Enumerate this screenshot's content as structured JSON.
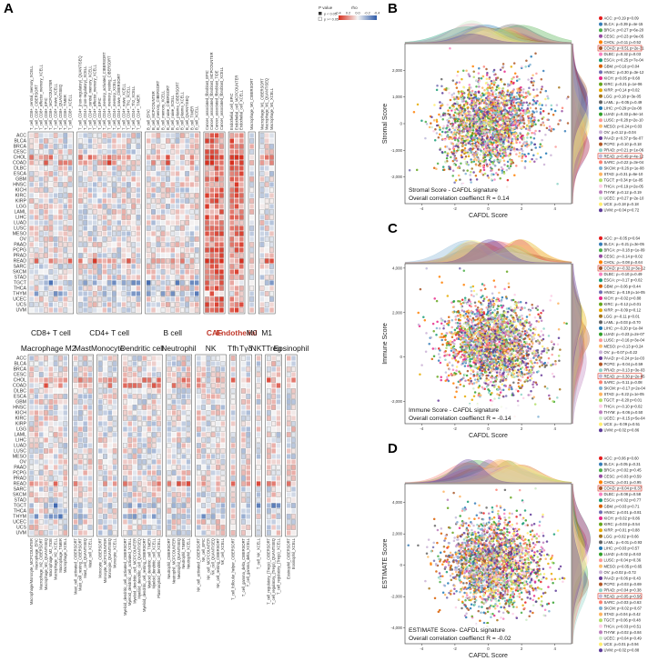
{
  "figure": {
    "panel_letters": [
      "A",
      "B",
      "C",
      "D"
    ]
  },
  "chart_data": [
    {
      "panel": "A",
      "type": "heatmap",
      "rows": [
        "ACC",
        "BLCA",
        "BRCA",
        "CESC",
        "CHOL",
        "COAD",
        "DLBC",
        "ESCA",
        "GBM",
        "HNSC",
        "KICH",
        "KIRC",
        "KIRP",
        "LGG",
        "LAML",
        "LIHC",
        "LUAD",
        "LUSC",
        "MESO",
        "OV",
        "PAAD",
        "PCPG",
        "PRAD",
        "READ",
        "SARC",
        "SKCM",
        "STAD",
        "TGCT",
        "THCA",
        "THYM",
        "UCEC",
        "UCS",
        "UVM"
      ],
      "legend": {
        "pvalue_title": "P value",
        "pvalue_levels": [
          "p < 0.05",
          "p >= 0.05"
        ],
        "rho_title": "rho",
        "rho_ticks": [
          "-0.4",
          "-0.2",
          "0.0",
          "0.2",
          "0.4"
        ],
        "colors": [
          "#2d5aa8",
          "#f4f4f4",
          "#d7301f"
        ]
      },
      "top_groups": [
        {
          "label": "CD8+ T cell",
          "highlight": false,
          "columns": [
            "T_cell_CD8+_central_memory_XCELL",
            "T_cell_CD8+_CIBERSORT",
            "T_cell_CD8+_effector_memory_XCELL",
            "T_cell_CD8+_EPIC",
            "T_cell_CD8+_MCPCOUNTER",
            "T_cell_CD8+_naive_XCELL",
            "T_cell_CD8+_QUANTISEQ",
            "T_cell_CD8+_TIMER",
            "T_cell_CD8+_XCELL"
          ]
        },
        {
          "label": "CD4+ T cell",
          "highlight": false,
          "columns": [
            "T_cell_CD4+_(non-regulatory)_QUANTISEQ",
            "T_cell_CD4+_(non-regulatory)_XCELL",
            "T_cell_CD4+_central_memory_XCELL",
            "T_cell_CD4+_effector_memory_XCELL",
            "T_cell_CD4+_EPIC",
            "T_cell_CD4+_memory_activated_CIBERSORT",
            "T_cell_CD4+_memory_resting_CIBERSORT",
            "T_cell_CD4+_memory_XCELL",
            "T_cell_CD4+_naive_CIBERSORT",
            "T_cell_CD4+_naive_XCELL",
            "T_cell_CD4+_Th1_XCELL",
            "T_cell_CD4+_Th2_XCELL",
            "T_cell_CD4+_TIMER"
          ]
        },
        {
          "label": "B cell",
          "highlight": false,
          "columns": [
            "B_cell_EPIC",
            "B_cell_MCPCOUNTER",
            "B_cell_memory_CIBERSORT",
            "B_cell_memory_XCELL",
            "B_cell_naive_CIBERSORT",
            "B_cell_naive_XCELL",
            "B_cell_plasma_CIBERSORT",
            "B_cell_plasma_XCELL",
            "B_cell_QUANTISEQ",
            "B_cell_TIMER",
            "B_cell_XCELL"
          ]
        },
        {
          "label": "CAF",
          "highlight": true,
          "columns": [
            "Cancer_associated_fibroblast_EPIC",
            "Cancer_associated_fibroblast_MCPCOUNTER",
            "Cancer_associated_fibroblast_TIDE",
            "Cancer_associated_fibroblast_XCELL"
          ]
        },
        {
          "label": "Endothelial",
          "highlight": true,
          "columns": [
            "Endothelial_cell_EPIC",
            "Endothelial_cell_MCPCOUNTER",
            "Endothelial_cell_XCELL"
          ]
        },
        {
          "label": "M0",
          "highlight": false,
          "columns": [
            "Macrophage_M0_CIBERSORT"
          ]
        },
        {
          "label": "M1",
          "highlight": false,
          "columns": [
            "Macrophage_M1_CIBERSORT",
            "Macrophage_M1_QUANTISEQ",
            "Macrophage_M1_XCELL"
          ]
        }
      ],
      "bottom_groups": [
        {
          "label": "Macrophage M2",
          "columns": [
            "Macrophage/Monocyte_MCPCOUNTER",
            "Macrophage_EPIC",
            "Macrophage_M2_CIBERSORT",
            "Macrophage_M2_QUANTISEQ",
            "Macrophage_M2_TIDE",
            "Macrophage_M2_XCELL",
            "Macrophage_TIMER",
            "Macrophage_XCELL"
          ]
        },
        {
          "label": "Mast",
          "columns": [
            "Mast_cell_activated_CIBERSORT",
            "Mast_cell_resting_CIBERSORT",
            "Mast_cell_QUANTISEQ",
            "Mast_cell_XCELL"
          ]
        },
        {
          "label": "Monocyte",
          "columns": [
            "Monocyte_CIBERSORT",
            "Monocyte_MCPCOUNTER",
            "Monocyte_QUANTISEQ",
            "Monocyte_XCELL"
          ]
        },
        {
          "label": "Dendritic cell",
          "columns": [
            "Myeloid_dendritic_cell_activated_CIBERSORT",
            "Myeloid_dendritic_cell_activated_XCELL",
            "Myeloid_dendritic_cell_MCPCOUNTER",
            "Myeloid_dendritic_cell_QUANTISEQ",
            "Myeloid_dendritic_cell_resting_CIBERSORT",
            "Myeloid_dendritic_cell_TIMER",
            "Myeloid_dendritic_cell_XCELL",
            "Plasmacytoid_dendritic_cell_XCELL"
          ]
        },
        {
          "label": "Neutrophil",
          "columns": [
            "Neutrophil_CIBERSORT",
            "Neutrophil_MCPCOUNTER",
            "Neutrophil_QUANTISEQ",
            "Neutrophil_TIMER",
            "Neutrophil_XCELL"
          ]
        },
        {
          "label": "NK",
          "columns": [
            "NK_cell_activated_CIBERSORT",
            "NK_cell_EPIC",
            "NK_cell_MCPCOUNTER",
            "NK_cell_QUANTISEQ",
            "NK_cell_resting_CIBERSORT",
            "NK_cell_XCELL"
          ]
        },
        {
          "label": "Tfh",
          "columns": [
            "T_cell_follicular_helper_CIBERSORT"
          ]
        },
        {
          "label": "Tγδ",
          "columns": [
            "T_cell_gamma_delta_CIBERSORT",
            "T_cell_gamma_delta_XCELL"
          ]
        },
        {
          "label": "NKT",
          "columns": [
            "T_cell_NK_XCELL"
          ]
        },
        {
          "label": "Treg",
          "columns": [
            "T_cell_regulatory_(Tregs)_CIBERSORT",
            "T_cell_regulatory_(Tregs)_QUANTISEQ",
            "T_cell_regulatory_(Tregs)_XCELL"
          ]
        },
        {
          "label": "Eosinophil",
          "columns": [
            "Eosinophil_CIBERSORT",
            "Eosinophil_XCELL"
          ]
        }
      ]
    },
    {
      "panel": "B",
      "type": "scatter",
      "xlabel": "CAFDL Score",
      "ylabel": "Stromal Score",
      "xlim": [
        -5,
        5
      ],
      "ylim": [
        -3000,
        3000
      ],
      "xticks": [
        -4,
        -2,
        0,
        2,
        4
      ],
      "yticks": [
        -2000,
        -1000,
        0,
        1000,
        2000
      ],
      "annotation_line1": "Stromal Score - CAFDL signature",
      "annotation_line2": "Overall correlation coeffienct R = 0.14",
      "r": 0.14,
      "highlight": [
        "COAD",
        "READ"
      ],
      "legend": [
        {
          "name": "ACC",
          "stat": "ρ=0.19 p=0.09",
          "color": "#e41a1c"
        },
        {
          "name": "BLCA",
          "stat": "ρ=0.39 p=4e-15",
          "color": "#377eb8"
        },
        {
          "name": "BRCA",
          "stat": "ρ=0.27 p=6e-20",
          "color": "#4daf4a"
        },
        {
          "name": "CESC",
          "stat": "ρ=0.23 p=9e-05",
          "color": "#984ea3"
        },
        {
          "name": "CHOL",
          "stat": "ρ=0.11 p=0.52",
          "color": "#ff7f00"
        },
        {
          "name": "COAD",
          "stat": "ρ=0.51 p=2e-31",
          "color": "#a65628"
        },
        {
          "name": "DLBC",
          "stat": "ρ=0.32 p=0.03",
          "color": "#f781bf"
        },
        {
          "name": "ESCA",
          "stat": "ρ=0.25 p=7e-04",
          "color": "#1b9e77"
        },
        {
          "name": "GBM",
          "stat": "ρ=0.16 p=0.04",
          "color": "#d95f02"
        },
        {
          "name": "HNSC",
          "stat": "ρ=0.30 p=3e-12",
          "color": "#7570b3"
        },
        {
          "name": "KICH",
          "stat": "ρ=0.05 p=0.68",
          "color": "#e7298a"
        },
        {
          "name": "KIRC",
          "stat": "ρ=0.21 p=1e-06",
          "color": "#66a61e"
        },
        {
          "name": "KIRP",
          "stat": "ρ=0.14 p=0.02",
          "color": "#e6ab02"
        },
        {
          "name": "LGG",
          "stat": "ρ=0.18 p=3e-05",
          "color": "#a6761d"
        },
        {
          "name": "LAML",
          "stat": "ρ=-0.05 p=0.49",
          "color": "#666666"
        },
        {
          "name": "LIHC",
          "stat": "ρ=0.29 p=2e-08",
          "color": "#1f78b4"
        },
        {
          "name": "LUAD",
          "stat": "ρ=0.33 p=5e-14",
          "color": "#33a02c"
        },
        {
          "name": "LUSC",
          "stat": "ρ=0.28 p=2e-10",
          "color": "#fb9a99"
        },
        {
          "name": "MESO",
          "stat": "ρ=0.24 p=0.03",
          "color": "#fdbf6f"
        },
        {
          "name": "OV",
          "stat": "ρ=0.12 p=0.04",
          "color": "#cab2d6"
        },
        {
          "name": "PAAD",
          "stat": "ρ=0.37 p=5e-07",
          "color": "#6a3d9a"
        },
        {
          "name": "PCPG",
          "stat": "ρ=0.10 p=0.18",
          "color": "#b15928"
        },
        {
          "name": "PRAD",
          "stat": "ρ=0.21 p=1e-06",
          "color": "#8dd3c7"
        },
        {
          "name": "READ",
          "stat": "ρ=0.49 p=4e-12",
          "color": "#bebada"
        },
        {
          "name": "SARC",
          "stat": "ρ=0.22 p=3e-04",
          "color": "#fb8072"
        },
        {
          "name": "SKCM",
          "stat": "ρ=0.26 p=1e-08",
          "color": "#80b1d3"
        },
        {
          "name": "STAD",
          "stat": "ρ=0.31 p=6e-10",
          "color": "#fdb462"
        },
        {
          "name": "TGCT",
          "stat": "ρ=0.34 p=1e-05",
          "color": "#b3de69"
        },
        {
          "name": "THCA",
          "stat": "ρ=0.19 p=2e-05",
          "color": "#fccde5"
        },
        {
          "name": "THYM",
          "stat": "ρ=0.12 p=0.19",
          "color": "#bc80bd"
        },
        {
          "name": "UCEC",
          "stat": "ρ=0.27 p=2e-10",
          "color": "#ccebc5"
        },
        {
          "name": "UCS",
          "stat": "ρ=0.18 p=0.18",
          "color": "#ffed6f"
        },
        {
          "name": "UVM",
          "stat": "ρ=0.04 p=0.72",
          "color": "#5e3c99"
        }
      ]
    },
    {
      "panel": "C",
      "type": "scatter",
      "xlabel": "CAFDL Score",
      "ylabel": "Immune Score",
      "xlim": [
        -5,
        5
      ],
      "ylim": [
        -3000,
        4200
      ],
      "xticks": [
        -4,
        -2,
        0,
        2,
        4
      ],
      "yticks": [
        -2000,
        0,
        2000,
        4000
      ],
      "annotation_line1": "Immune Score - CAFDL signature",
      "annotation_line2": "Overall correlation coeffienct R = -0.14",
      "r": -0.14,
      "highlight": [
        "COAD",
        "READ"
      ],
      "legend": [
        {
          "name": "ACC",
          "stat": "ρ=-0.05 p=0.64",
          "color": "#e41a1c"
        },
        {
          "name": "BLCA",
          "stat": "ρ=-0.21 p=3e-05",
          "color": "#377eb8"
        },
        {
          "name": "BRCA",
          "stat": "ρ=-0.18 p=1e-09",
          "color": "#4daf4a"
        },
        {
          "name": "CESC",
          "stat": "ρ=-0.14 p=0.02",
          "color": "#984ea3"
        },
        {
          "name": "CHOL",
          "stat": "ρ=-0.08 p=0.64",
          "color": "#ff7f00"
        },
        {
          "name": "COAD",
          "stat": "ρ=-0.32 p=3e-12",
          "color": "#a65628"
        },
        {
          "name": "DLBC",
          "stat": "ρ=-0.10 p=0.49",
          "color": "#f781bf"
        },
        {
          "name": "ESCA",
          "stat": "ρ=-0.17 p=0.02",
          "color": "#1b9e77"
        },
        {
          "name": "GBM",
          "stat": "ρ=-0.06 p=0.44",
          "color": "#d95f02"
        },
        {
          "name": "HNSC",
          "stat": "ρ=-0.19 p=1e-05",
          "color": "#7570b3"
        },
        {
          "name": "KICH",
          "stat": "ρ=-0.02 p=0.88",
          "color": "#e7298a"
        },
        {
          "name": "KIRC",
          "stat": "ρ=-0.12 p=0.01",
          "color": "#66a61e"
        },
        {
          "name": "KIRP",
          "stat": "ρ=-0.09 p=0.12",
          "color": "#e6ab02"
        },
        {
          "name": "LGG",
          "stat": "ρ=-0.11 p=0.01",
          "color": "#a6761d"
        },
        {
          "name": "LAML",
          "stat": "ρ=0.03 p=0.70",
          "color": "#666666"
        },
        {
          "name": "LIHC",
          "stat": "ρ=-0.20 p=1e-04",
          "color": "#1f78b4"
        },
        {
          "name": "LUAD",
          "stat": "ρ=-0.23 p=2e-07",
          "color": "#33a02c"
        },
        {
          "name": "LUSC",
          "stat": "ρ=-0.16 p=3e-04",
          "color": "#fb9a99"
        },
        {
          "name": "MESO",
          "stat": "ρ=-0.13 p=0.24",
          "color": "#fdbf6f"
        },
        {
          "name": "OV",
          "stat": "ρ=-0.07 p=0.22",
          "color": "#cab2d6"
        },
        {
          "name": "PAAD",
          "stat": "ρ=-0.24 p=1e-03",
          "color": "#6a3d9a"
        },
        {
          "name": "PCPG",
          "stat": "ρ=-0.04 p=0.59",
          "color": "#b15928"
        },
        {
          "name": "PRAD",
          "stat": "ρ=-0.13 p=3e-03",
          "color": "#8dd3c7"
        },
        {
          "name": "READ",
          "stat": "ρ=-0.30 p=2e-05",
          "color": "#bebada"
        },
        {
          "name": "SARC",
          "stat": "ρ=-0.11 p=0.08",
          "color": "#fb8072"
        },
        {
          "name": "SKCM",
          "stat": "ρ=-0.17 p=2e-04",
          "color": "#80b1d3"
        },
        {
          "name": "STAD",
          "stat": "ρ=-0.22 p=1e-05",
          "color": "#fdb462"
        },
        {
          "name": "TGCT",
          "stat": "ρ=-0.20 p=0.01",
          "color": "#b3de69"
        },
        {
          "name": "THCA",
          "stat": "ρ=-0.10 p=0.02",
          "color": "#fccde5"
        },
        {
          "name": "THYM",
          "stat": "ρ=-0.06 p=0.50",
          "color": "#bc80bd"
        },
        {
          "name": "UCEC",
          "stat": "ρ=-0.15 p=5e-04",
          "color": "#ccebc5"
        },
        {
          "name": "UCS",
          "stat": "ρ=-0.09 p=0.51",
          "color": "#ffed6f"
        },
        {
          "name": "UVM",
          "stat": "ρ=0.02 p=0.86",
          "color": "#5e3c99"
        }
      ]
    },
    {
      "panel": "D",
      "type": "scatter",
      "xlabel": "CAFDL Score",
      "ylabel": "ESTIMATE Score",
      "xlim": [
        -5,
        5
      ],
      "ylim": [
        -5000,
        5200
      ],
      "xticks": [
        -4,
        -2,
        0,
        2,
        4
      ],
      "yticks": [
        -4000,
        -2000,
        0,
        2000,
        4000
      ],
      "annotation_line1": "ESTIMATE Score- CAFDL signature",
      "annotation_line2": "Overall correlation coeffienct R = -0.02",
      "r": -0.02,
      "highlight": [
        "COAD",
        "READ"
      ],
      "legend": [
        {
          "name": "ACC",
          "stat": "ρ=0.06 p=0.60",
          "color": "#e41a1c"
        },
        {
          "name": "BLCA",
          "stat": "ρ=0.05 p=0.31",
          "color": "#377eb8"
        },
        {
          "name": "BRCA",
          "stat": "ρ=0.02 p=0.45",
          "color": "#4daf4a"
        },
        {
          "name": "CESC",
          "stat": "ρ=0.03 p=0.59",
          "color": "#984ea3"
        },
        {
          "name": "CHOL",
          "stat": "ρ=0.01 p=0.95",
          "color": "#ff7f00"
        },
        {
          "name": "COAD",
          "stat": "ρ=0.04 p=0.37",
          "color": "#a65628"
        },
        {
          "name": "DLBC",
          "stat": "ρ=0.08 p=0.58",
          "color": "#f781bf"
        },
        {
          "name": "ESCA",
          "stat": "ρ=0.02 p=0.77",
          "color": "#1b9e77"
        },
        {
          "name": "GBM",
          "stat": "ρ=0.03 p=0.71",
          "color": "#d95f02"
        },
        {
          "name": "HNSC",
          "stat": "ρ=0.01 p=0.81",
          "color": "#7570b3"
        },
        {
          "name": "KICH",
          "stat": "ρ=0.02 p=0.86",
          "color": "#e7298a"
        },
        {
          "name": "KIRC",
          "stat": "ρ=0.03 p=0.54",
          "color": "#66a61e"
        },
        {
          "name": "KIRP",
          "stat": "ρ=0.01 p=0.88",
          "color": "#e6ab02"
        },
        {
          "name": "LGG",
          "stat": "ρ=0.02 p=0.66",
          "color": "#a6761d"
        },
        {
          "name": "LAML",
          "stat": "ρ=-0.01 p=0.93",
          "color": "#666666"
        },
        {
          "name": "LIHC",
          "stat": "ρ=0.03 p=0.57",
          "color": "#1f78b4"
        },
        {
          "name": "LUAD",
          "stat": "ρ=0.02 p=0.63",
          "color": "#33a02c"
        },
        {
          "name": "LUSC",
          "stat": "ρ=0.04 p=0.36",
          "color": "#fb9a99"
        },
        {
          "name": "MESO",
          "stat": "ρ=0.05 p=0.65",
          "color": "#fdbf6f"
        },
        {
          "name": "OV",
          "stat": "ρ=0.02 p=0.72",
          "color": "#cab2d6"
        },
        {
          "name": "PAAD",
          "stat": "ρ=0.06 p=0.43",
          "color": "#6a3d9a"
        },
        {
          "name": "PCPG",
          "stat": "ρ=0.03 p=0.69",
          "color": "#b15928"
        },
        {
          "name": "PRAD",
          "stat": "ρ=0.04 p=0.38",
          "color": "#8dd3c7"
        },
        {
          "name": "READ",
          "stat": "ρ=0.05 p=0.56",
          "color": "#bebada"
        },
        {
          "name": "SARC",
          "stat": "ρ=0.03 p=0.63",
          "color": "#fb8072"
        },
        {
          "name": "SKCM",
          "stat": "ρ=0.02 p=0.67",
          "color": "#80b1d3"
        },
        {
          "name": "STAD",
          "stat": "ρ=0.04 p=0.42",
          "color": "#fdb462"
        },
        {
          "name": "TGCT",
          "stat": "ρ=0.06 p=0.48",
          "color": "#b3de69"
        },
        {
          "name": "THCA",
          "stat": "ρ=0.03 p=0.51",
          "color": "#fccde5"
        },
        {
          "name": "THYM",
          "stat": "ρ=0.02 p=0.84",
          "color": "#bc80bd"
        },
        {
          "name": "UCEC",
          "stat": "ρ=0.04 p=0.49",
          "color": "#ccebc5"
        },
        {
          "name": "UCS",
          "stat": "ρ=0.01 p=0.94",
          "color": "#ffed6f"
        },
        {
          "name": "UVM",
          "stat": "ρ=0.02 p=0.88",
          "color": "#5e3c99"
        }
      ]
    }
  ]
}
